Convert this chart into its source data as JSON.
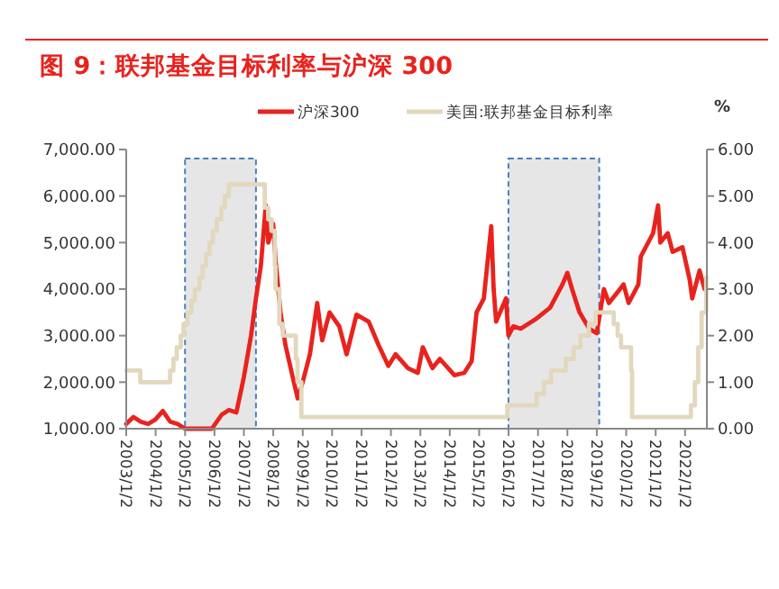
{
  "chart_data": {
    "type": "line",
    "title": "图 9：联邦基金目标利率与沪深 300",
    "y2label": "%",
    "legend": "top",
    "xlim": [
      "2003-01-02",
      "2022-09-30"
    ],
    "xticks": [
      {
        "value": "2003-01-02",
        "label": "2003/1/2"
      },
      {
        "value": "2004-01-02",
        "label": "2004/1/2"
      },
      {
        "value": "2005-01-02",
        "label": "2005/1/2"
      },
      {
        "value": "2006-01-02",
        "label": "2006/1/2"
      },
      {
        "value": "2007-01-02",
        "label": "2007/1/2"
      },
      {
        "value": "2008-01-02",
        "label": "2008/1/2"
      },
      {
        "value": "2009-01-02",
        "label": "2009/1/2"
      },
      {
        "value": "2010-01-02",
        "label": "2010/1/2"
      },
      {
        "value": "2011-01-02",
        "label": "2011/1/2"
      },
      {
        "value": "2012-01-02",
        "label": "2012/1/2"
      },
      {
        "value": "2013-01-02",
        "label": "2013/1/2"
      },
      {
        "value": "2014-01-02",
        "label": "2014/1/2"
      },
      {
        "value": "2015-01-02",
        "label": "2015/1/2"
      },
      {
        "value": "2016-01-02",
        "label": "2016/1/2"
      },
      {
        "value": "2017-01-02",
        "label": "2017/1/2"
      },
      {
        "value": "2018-01-02",
        "label": "2018/1/2"
      },
      {
        "value": "2019-01-02",
        "label": "2019/1/2"
      },
      {
        "value": "2020-01-02",
        "label": "2020/1/2"
      },
      {
        "value": "2021-01-02",
        "label": "2021/1/2"
      },
      {
        "value": "2022-01-02",
        "label": "2022/1/2"
      }
    ],
    "ylim": [
      1000,
      7000
    ],
    "yticks": [
      {
        "value": 1000,
        "label": "1,000.00"
      },
      {
        "value": 2000,
        "label": "2,000.00"
      },
      {
        "value": 3000,
        "label": "3,000.00"
      },
      {
        "value": 4000,
        "label": "4,000.00"
      },
      {
        "value": 5000,
        "label": "5,000.00"
      },
      {
        "value": 6000,
        "label": "6,000.00"
      },
      {
        "value": 7000,
        "label": "7,000.00"
      }
    ],
    "y2lim": [
      0,
      6
    ],
    "y2ticks": [
      {
        "value": 0,
        "label": "0.00"
      },
      {
        "value": 1,
        "label": "1.00"
      },
      {
        "value": 2,
        "label": "2.00"
      },
      {
        "value": 3,
        "label": "3.00"
      },
      {
        "value": 4,
        "label": "4.00"
      },
      {
        "value": 5,
        "label": "5.00"
      },
      {
        "value": 6,
        "label": "6.00"
      }
    ],
    "bands": [
      {
        "axis": "x",
        "from": "2005-01",
        "to": "2007-06",
        "color": "#e6e6e6"
      },
      {
        "axis": "x",
        "from": "2016-01",
        "to": "2019-02",
        "color": "#e6e6e6"
      }
    ],
    "series": [
      {
        "name": "沪深300",
        "color": "#e8231e",
        "x": [
          "2003-01-02",
          "2003-04",
          "2003-07",
          "2003-10",
          "2004-01",
          "2004-04",
          "2004-07",
          "2004-10",
          "2005-01",
          "2005-06",
          "2005-12",
          "2006-04",
          "2006-07",
          "2006-10",
          "2007-01",
          "2007-04",
          "2007-06",
          "2007-08",
          "2007-10",
          "2007-11",
          "2008-01",
          "2008-02",
          "2008-04",
          "2008-06",
          "2008-09",
          "2008-11",
          "2009-01",
          "2009-04",
          "2009-07",
          "2009-09",
          "2009-12",
          "2010-04",
          "2010-07",
          "2010-11",
          "2011-04",
          "2011-08",
          "2011-12",
          "2012-03",
          "2012-08",
          "2012-12",
          "2013-02",
          "2013-06",
          "2013-09",
          "2014-03",
          "2014-07",
          "2014-10",
          "2014-12",
          "2015-03",
          "2015-06",
          "2015-07",
          "2015-08",
          "2015-12",
          "2016-01",
          "2016-03",
          "2016-06",
          "2016-12",
          "2017-06",
          "2017-11",
          "2018-01",
          "2018-03",
          "2018-06",
          "2018-10",
          "2019-01",
          "2019-04",
          "2019-06",
          "2019-09",
          "2019-12",
          "2020-02",
          "2020-06",
          "2020-07",
          "2020-12",
          "2021-02",
          "2021-03",
          "2021-06",
          "2021-08",
          "2021-12",
          "2022-03",
          "2022-04",
          "2022-07",
          "2022-09"
        ],
        "values": [
          1100,
          1250,
          1150,
          1100,
          1200,
          1380,
          1150,
          1100,
          1000,
          1000,
          1000,
          1300,
          1400,
          1350,
          2100,
          3000,
          3800,
          4500,
          5800,
          5000,
          5400,
          4600,
          3500,
          2800,
          2100,
          1650,
          2000,
          2600,
          3700,
          2900,
          3500,
          3200,
          2600,
          3450,
          3300,
          2800,
          2350,
          2600,
          2300,
          2200,
          2750,
          2300,
          2500,
          2150,
          2200,
          2450,
          3500,
          3800,
          5350,
          4000,
          3300,
          3800,
          3000,
          3200,
          3150,
          3350,
          3600,
          4100,
          4350,
          4000,
          3500,
          3150,
          3050,
          4000,
          3700,
          3900,
          4100,
          3700,
          4100,
          4700,
          5200,
          5800,
          5000,
          5200,
          4800,
          4900,
          4200,
          3800,
          4400,
          4000
        ]
      },
      {
        "name": "美国:联邦基金目标利率",
        "color": "#e2d8bd",
        "type": "step",
        "axis": "y2",
        "x": [
          "2003-01-02",
          "2003-06-25",
          "2004-06-30",
          "2004-08-10",
          "2004-09-21",
          "2004-11-10",
          "2004-12-14",
          "2005-02-02",
          "2005-03-22",
          "2005-05-03",
          "2005-06-30",
          "2005-08-09",
          "2005-09-20",
          "2005-11-01",
          "2005-12-13",
          "2006-01-31",
          "2006-03-28",
          "2006-05-10",
          "2006-06-29",
          "2007-09-18",
          "2007-10-31",
          "2007-12-11",
          "2008-01-22",
          "2008-01-30",
          "2008-03-18",
          "2008-04-30",
          "2008-10-08",
          "2008-10-29",
          "2008-12-16",
          "2015-12-16",
          "2016-12-14",
          "2017-03-15",
          "2017-06-14",
          "2017-12-13",
          "2018-03-21",
          "2018-06-13",
          "2018-09-26",
          "2018-12-19",
          "2019-07-31",
          "2019-09-18",
          "2019-10-30",
          "2020-03-03",
          "2020-03-15",
          "2022-03-16",
          "2022-05-04",
          "2022-06-15",
          "2022-07-27",
          "2022-09-21",
          "2022-09-30"
        ],
        "values": [
          1.25,
          1.0,
          1.25,
          1.5,
          1.75,
          2.0,
          2.25,
          2.5,
          2.75,
          3.0,
          3.25,
          3.5,
          3.75,
          4.0,
          4.25,
          4.5,
          4.75,
          5.0,
          5.25,
          4.75,
          4.5,
          4.25,
          3.5,
          3.0,
          2.25,
          2.0,
          1.5,
          1.0,
          0.25,
          0.5,
          0.75,
          1.0,
          1.25,
          1.5,
          1.75,
          2.0,
          2.25,
          2.5,
          2.25,
          2.0,
          1.75,
          1.25,
          0.25,
          0.5,
          1.0,
          1.75,
          2.5,
          3.25,
          3.25
        ]
      }
    ]
  }
}
